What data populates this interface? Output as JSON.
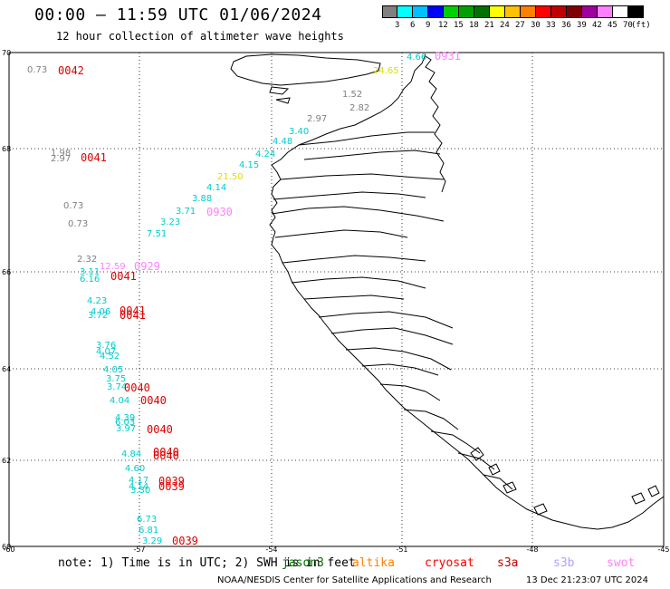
{
  "title": "00:00 — 11:59 UTC 01/06/2024",
  "subtitle": "12 hour collection of altimeter wave heights",
  "colorbar": {
    "colors": [
      "#808080",
      "#00ffff",
      "#00c0ff",
      "#0000ff",
      "#00d000",
      "#00a000",
      "#007000",
      "#ffff00",
      "#ffc000",
      "#ff8000",
      "#ff0000",
      "#c00000",
      "#800000",
      "#a000a0",
      "#ff80ff",
      "#ffffff",
      "#000000"
    ],
    "labels": [
      "3",
      "6",
      "9",
      "12",
      "15",
      "18",
      "21",
      "24",
      "27",
      "30",
      "33",
      "36",
      "39",
      "42",
      "45",
      "70"
    ],
    "unit": "(ft)"
  },
  "axes": {
    "lat_ticks": [
      "70",
      "68",
      "66",
      "64",
      "62",
      "60"
    ],
    "lon_ticks": [
      "-60",
      "-57",
      "-54",
      "-51",
      "-48",
      "-45"
    ]
  },
  "swh_labels": [
    {
      "text": "0.73",
      "color": "#808080"
    },
    {
      "text": "1.52",
      "color": "#808080"
    },
    {
      "text": "2.82",
      "color": "#808080"
    },
    {
      "text": "2.97",
      "color": "#808080"
    },
    {
      "text": "3.40",
      "color": "#00cccc"
    },
    {
      "text": "4.48",
      "color": "#00cccc"
    },
    {
      "text": "4.24",
      "color": "#00cccc"
    },
    {
      "text": "4.15",
      "color": "#00cccc"
    },
    {
      "text": "21.50",
      "color": "#dddd00"
    },
    {
      "text": "4.14",
      "color": "#00cccc"
    },
    {
      "text": "3.88",
      "color": "#00cccc"
    },
    {
      "text": "3.71",
      "color": "#00cccc"
    },
    {
      "text": "3.23",
      "color": "#00cccc"
    },
    {
      "text": "7.51",
      "color": "#00cccc"
    },
    {
      "text": "1.98",
      "color": "#808080"
    },
    {
      "text": "2.97",
      "color": "#808080"
    },
    {
      "text": "0.73",
      "color": "#808080"
    },
    {
      "text": "0.73",
      "color": "#808080"
    },
    {
      "text": "2.32",
      "color": "#808080"
    },
    {
      "text": "12.59",
      "color": "#ff80ff"
    },
    {
      "text": "3.11",
      "color": "#00cccc"
    },
    {
      "text": "6.16",
      "color": "#00cccc"
    },
    {
      "text": "4.23",
      "color": "#00cccc"
    },
    {
      "text": "4.06",
      "color": "#00cccc"
    },
    {
      "text": "3.72",
      "color": "#00cccc"
    },
    {
      "text": "3.76",
      "color": "#00cccc"
    },
    {
      "text": "4.07",
      "color": "#00cccc"
    },
    {
      "text": "4.52",
      "color": "#00cccc"
    },
    {
      "text": "4.05",
      "color": "#00cccc"
    },
    {
      "text": "3.75",
      "color": "#00cccc"
    },
    {
      "text": "3.74",
      "color": "#00cccc"
    },
    {
      "text": "4.04",
      "color": "#00cccc"
    },
    {
      "text": "4.39",
      "color": "#00cccc"
    },
    {
      "text": "6.03",
      "color": "#00cccc"
    },
    {
      "text": "3.97",
      "color": "#00cccc"
    },
    {
      "text": "4.84",
      "color": "#00cccc"
    },
    {
      "text": "4.60",
      "color": "#00cccc"
    },
    {
      "text": "4.17",
      "color": "#00cccc"
    },
    {
      "text": "4.14",
      "color": "#00cccc"
    },
    {
      "text": "3.30",
      "color": "#00cccc"
    },
    {
      "text": "6.73",
      "color": "#00cccc"
    },
    {
      "text": "6.81",
      "color": "#00cccc"
    },
    {
      "text": "3.29",
      "color": "#00cccc"
    },
    {
      "text": "24.65",
      "color": "#dddd00"
    },
    {
      "text": "4.66",
      "color": "#00cccc"
    }
  ],
  "time_labels": [
    {
      "text": "0042",
      "color": "#dd0000"
    },
    {
      "text": "0041",
      "color": "#dd0000"
    },
    {
      "text": "0930",
      "color": "#ff80ff"
    },
    {
      "text": "0929",
      "color": "#ff80ff"
    },
    {
      "text": "0041",
      "color": "#dd0000"
    },
    {
      "text": "0041",
      "color": "#dd0000"
    },
    {
      "text": "0041",
      "color": "#dd0000"
    },
    {
      "text": "0040",
      "color": "#dd0000"
    },
    {
      "text": "0040",
      "color": "#dd0000"
    },
    {
      "text": "0040",
      "color": "#dd0000"
    },
    {
      "text": "0040",
      "color": "#dd0000"
    },
    {
      "text": "0040",
      "color": "#dd0000"
    },
    {
      "text": "0039",
      "color": "#dd0000"
    },
    {
      "text": "0039",
      "color": "#dd0000"
    },
    {
      "text": "0039",
      "color": "#dd0000"
    },
    {
      "text": "0931",
      "color": "#ff80ff"
    }
  ],
  "note": "note: 1) Time is in UTC; 2) SWH is in feet",
  "satellites": [
    {
      "name": "jason3",
      "color": "#007000"
    },
    {
      "name": "altika",
      "color": "#ff8000"
    },
    {
      "name": "cryosat",
      "color": "#ff0000"
    },
    {
      "name": "s3a",
      "color": "#c00000"
    },
    {
      "name": "s3b",
      "color": "#b0a0ff"
    },
    {
      "name": "swot",
      "color": "#ff80ff"
    }
  ],
  "credit": "NOAA/NESDIS Center for Satellite Applications and Research",
  "timestamp": "13 Dec 21:23:07 UTC 2024"
}
